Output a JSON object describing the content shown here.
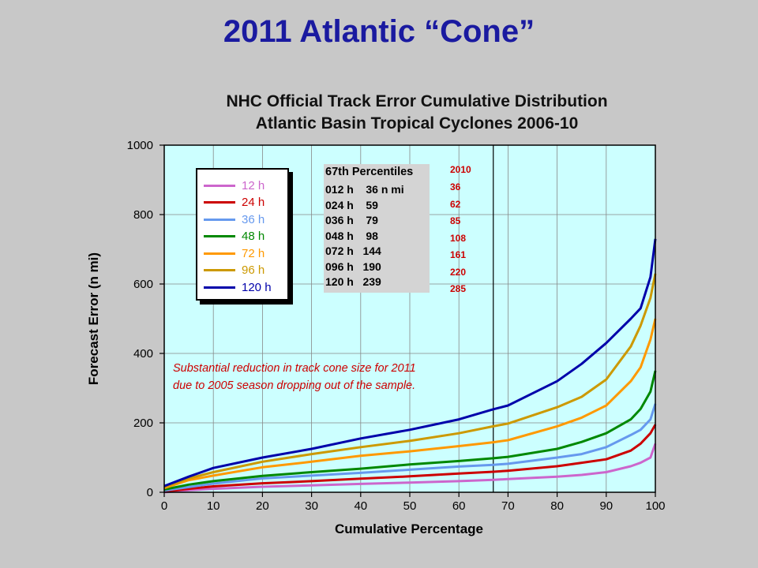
{
  "slide_title": "2011 Atlantic “Cone”",
  "chart_data": {
    "type": "line",
    "title_line1": "NHC Official Track Error Cumulative Distribution",
    "title_line2": "Atlantic Basin Tropical Cyclones 2006-10",
    "xlabel": "Cumulative Percentage",
    "ylabel": "Forecast Error (n mi)",
    "xlim": [
      0,
      100
    ],
    "ylim": [
      0,
      1000
    ],
    "x_ticks": [
      "0",
      "10",
      "20",
      "30",
      "40",
      "50",
      "60",
      "70",
      "80",
      "90",
      "100"
    ],
    "y_ticks": [
      "0",
      "200",
      "400",
      "600",
      "800",
      "1000"
    ],
    "grid": true,
    "vline_x": 67,
    "background": "#ccffff",
    "x": [
      0,
      5,
      10,
      20,
      30,
      40,
      50,
      60,
      67,
      70,
      80,
      85,
      90,
      95,
      97,
      99,
      100
    ],
    "series": [
      {
        "name": "12 h",
        "color": "#cc66cc",
        "values": [
          0,
          6,
          10,
          16,
          20,
          24,
          28,
          32,
          36,
          38,
          45,
          50,
          58,
          75,
          85,
          100,
          140
        ]
      },
      {
        "name": "24 h",
        "color": "#cc0000",
        "values": [
          2,
          10,
          17,
          26,
          32,
          39,
          46,
          54,
          59,
          62,
          75,
          85,
          95,
          120,
          140,
          170,
          195
        ]
      },
      {
        "name": "36 h",
        "color": "#6699ee",
        "values": [
          5,
          15,
          25,
          40,
          48,
          56,
          65,
          74,
          79,
          82,
          100,
          110,
          130,
          165,
          180,
          210,
          255
        ]
      },
      {
        "name": "48 h",
        "color": "#008800",
        "values": [
          8,
          22,
          32,
          47,
          58,
          68,
          80,
          90,
          98,
          102,
          125,
          145,
          170,
          210,
          240,
          290,
          350
        ]
      },
      {
        "name": "72 h",
        "color": "#ff9900",
        "values": [
          12,
          35,
          48,
          72,
          88,
          105,
          118,
          133,
          144,
          150,
          190,
          215,
          250,
          320,
          360,
          440,
          500
        ]
      },
      {
        "name": "96 h",
        "color": "#cc9900",
        "values": [
          15,
          40,
          58,
          88,
          110,
          130,
          148,
          170,
          190,
          198,
          245,
          275,
          325,
          420,
          480,
          560,
          630
        ]
      },
      {
        "name": "120 h",
        "color": "#0000aa",
        "values": [
          18,
          45,
          70,
          100,
          125,
          155,
          180,
          210,
          239,
          250,
          320,
          370,
          430,
          500,
          530,
          620,
          730
        ]
      }
    ]
  },
  "legend": {
    "items": [
      {
        "label": "12 h",
        "color": "#cc66cc"
      },
      {
        "label": "24 h",
        "color": "#cc0000"
      },
      {
        "label": "36 h",
        "color": "#6699ee"
      },
      {
        "label": "48 h",
        "color": "#008800"
      },
      {
        "label": "72 h",
        "color": "#ff9900"
      },
      {
        "label": "96 h",
        "color": "#cc9900"
      },
      {
        "label": "120 h",
        "color": "#0000aa"
      }
    ]
  },
  "percentiles": {
    "title": "67th Percentiles",
    "rows": [
      "012 h    36 n mi",
      "024 h    59",
      "036 h    79",
      "048 h    98",
      "072 h   144",
      "096 h   190",
      "120 h   239"
    ],
    "year_header": "2010",
    "year_values": [
      "36",
      "62",
      "85",
      "108",
      "161",
      "220",
      "285"
    ]
  },
  "annotation": {
    "line1": "Substantial reduction in track cone size for 2011",
    "line2": "due to 2005 season dropping out of the sample."
  }
}
